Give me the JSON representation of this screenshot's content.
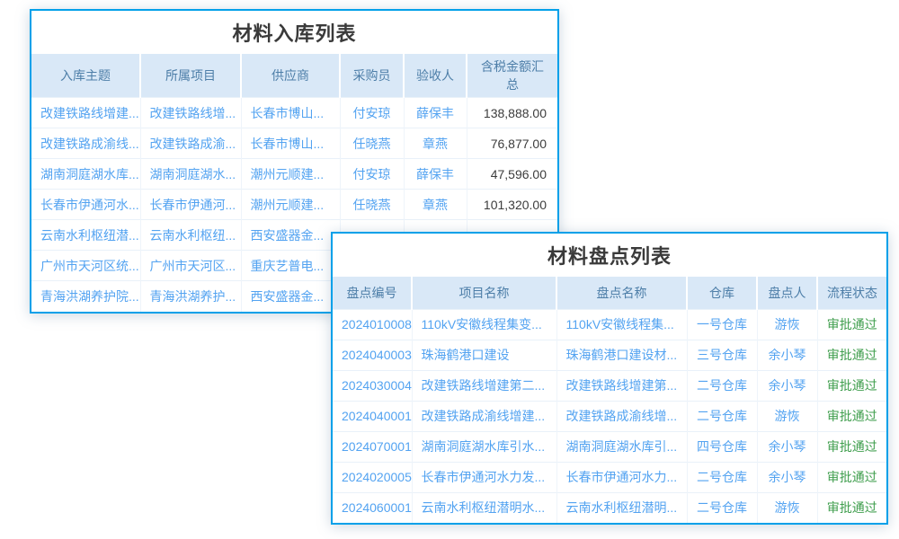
{
  "colors": {
    "panel_border": "#00a0e9",
    "header_background": "#d9e8f7",
    "header_text": "#4d7ea8",
    "link_text": "#53a3f1",
    "plain_text": "#3c3c3c",
    "status_green": "#3f9e4d",
    "title_text": "#3a3a3a"
  },
  "inbound_table": {
    "title": "材料入库列表",
    "columns": [
      "入库主题",
      "所属项目",
      "供应商",
      "采购员",
      "验收人",
      "含税金额汇总"
    ],
    "rows": [
      [
        "改建铁路线增建...",
        "改建铁路线增...",
        "长春市博山...",
        "付安琼",
        "薛保丰",
        "138,888.00"
      ],
      [
        "改建铁路成渝线...",
        "改建铁路成渝...",
        "长春市博山...",
        "任晓燕",
        "章燕",
        "76,877.00"
      ],
      [
        "湖南洞庭湖水库...",
        "湖南洞庭湖水...",
        "潮州元顺建...",
        "付安琼",
        "薛保丰",
        "47,596.00"
      ],
      [
        "长春市伊通河水...",
        "长春市伊通河...",
        "潮州元顺建...",
        "任晓燕",
        "章燕",
        "101,320.00"
      ],
      [
        "云南水利枢纽潜...",
        "云南水利枢纽...",
        "西安盛器金...",
        "",
        "",
        ""
      ],
      [
        "广州市天河区统...",
        "广州市天河区...",
        "重庆艺普电...",
        "",
        "",
        ""
      ],
      [
        "青海洪湖养护院...",
        "青海洪湖养护...",
        "西安盛器金...",
        "",
        "",
        ""
      ]
    ]
  },
  "stocktake_table": {
    "title": "材料盘点列表",
    "columns": [
      "盘点编号",
      "项目名称",
      "盘点名称",
      "仓库",
      "盘点人",
      "流程状态"
    ],
    "rows": [
      [
        "2024010008",
        "110kV安徽线程集变...",
        "110kV安徽线程集...",
        "一号仓库",
        "游恢",
        "审批通过"
      ],
      [
        "2024040003",
        "珠海鹤港口建设",
        "珠海鹤港口建设材...",
        "三号仓库",
        "余小琴",
        "审批通过"
      ],
      [
        "2024030004",
        "改建铁路线增建第二...",
        "改建铁路线增建第...",
        "二号仓库",
        "余小琴",
        "审批通过"
      ],
      [
        "2024040001",
        "改建铁路成渝线增建...",
        "改建铁路成渝线增...",
        "二号仓库",
        "游恢",
        "审批通过"
      ],
      [
        "2024070001",
        "湖南洞庭湖水库引水...",
        "湖南洞庭湖水库引...",
        "四号仓库",
        "余小琴",
        "审批通过"
      ],
      [
        "2024020005",
        "长春市伊通河水力发...",
        "长春市伊通河水力...",
        "二号仓库",
        "余小琴",
        "审批通过"
      ],
      [
        "2024060001",
        "云南水利枢纽潜明水...",
        "云南水利枢纽潜明...",
        "二号仓库",
        "游恢",
        "审批通过"
      ]
    ]
  }
}
